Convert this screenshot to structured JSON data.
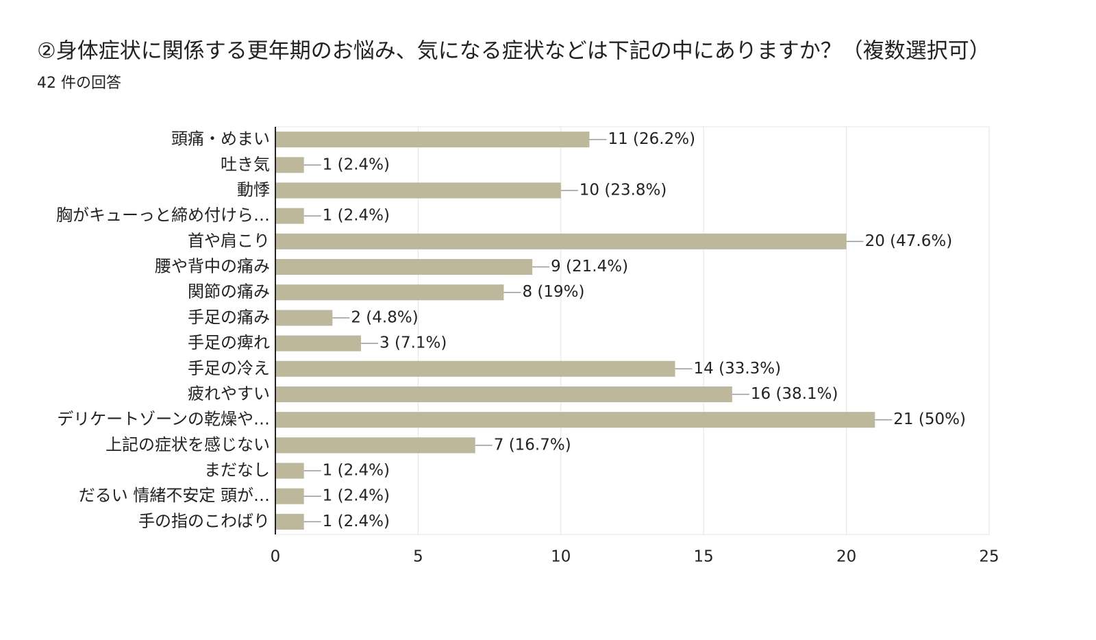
{
  "chart_data": {
    "type": "bar",
    "orientation": "horizontal",
    "title": "②身体症状に関係する更年期のお悩み、気になる症状などは下記の中にありますか？（複数選択可）",
    "subtitle": "42 件の回答",
    "categories": [
      "頭痛・めまい",
      "吐き気",
      "動悸",
      "胸がキューっと締め付けら…",
      "首や肩こり",
      "腰や背中の痛み",
      "関節の痛み",
      "手足の痛み",
      "手足の痺れ",
      "手足の冷え",
      "疲れやすい",
      "デリケートゾーンの乾燥や…",
      "上記の症状を感じない",
      "まだなし",
      "だるい 情緒不安定 頭が…",
      "手の指のこわばり"
    ],
    "values": [
      11,
      1,
      10,
      1,
      20,
      9,
      8,
      2,
      3,
      14,
      16,
      21,
      7,
      1,
      1,
      1
    ],
    "value_labels": [
      "11 (26.2%)",
      "1 (2.4%)",
      "10 (23.8%)",
      "1 (2.4%)",
      "20 (47.6%)",
      "9 (21.4%)",
      "8 (19%)",
      "2 (4.8%)",
      "3 (7.1%)",
      "14 (33.3%)",
      "16 (38.1%)",
      "21 (50%)",
      "7 (16.7%)",
      "1 (2.4%)",
      "1 (2.4%)",
      "1 (2.4%)"
    ],
    "color": "#bdb89b",
    "xlim": [
      0,
      25
    ],
    "xticks": [
      0,
      5,
      10,
      15,
      20,
      25
    ],
    "grid": true
  }
}
